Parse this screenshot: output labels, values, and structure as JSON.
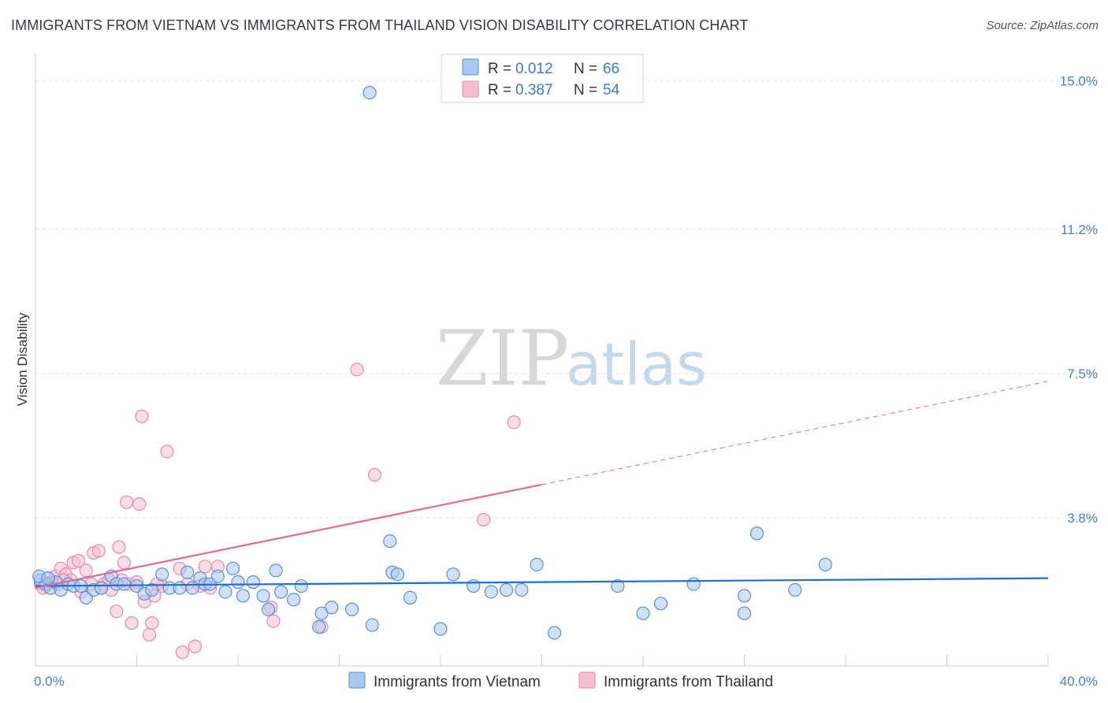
{
  "title": "IMMIGRANTS FROM VIETNAM VS IMMIGRANTS FROM THAILAND VISION DISABILITY CORRELATION CHART",
  "source": "Source: ZipAtlas.com",
  "watermark": {
    "zip": "ZIP",
    "atlas": "atlas"
  },
  "colors": {
    "vietnam_fill": "#a9c8f0",
    "vietnam_stroke": "#5a8fd6",
    "vietnam_line": "#1f6fcc",
    "thailand_fill": "#f6bfd1",
    "thailand_stroke": "#e58aa8",
    "thailand_line": "#e26a94",
    "grid": "#e2e2e2",
    "axis_text": "#4a7fd0"
  },
  "legend": {
    "r_label": "R = ",
    "n_label": "N = ",
    "vietnam": {
      "r": "0.012",
      "n": "66"
    },
    "thailand": {
      "r": "0.387",
      "n": "54"
    }
  },
  "chart_data": {
    "type": "scatter",
    "title": "IMMIGRANTS FROM VIETNAM VS IMMIGRANTS FROM THAILAND VISION DISABILITY CORRELATION CHART",
    "xlabel": "",
    "ylabel": "Vision Disability",
    "xlim": [
      0,
      40
    ],
    "ylim": [
      0,
      15.5
    ],
    "x_tick_labels": [
      "0.0%",
      "40.0%"
    ],
    "y_ticks": [
      3.8,
      7.5,
      11.2,
      15.0
    ],
    "y_tick_labels": [
      "3.8%",
      "7.5%",
      "11.2%",
      "15.0%"
    ],
    "grid": true,
    "legend_position": "top-center",
    "series": [
      {
        "name": "Immigrants from Vietnam",
        "trend": {
          "x": [
            0,
            40
          ],
          "y": [
            2.05,
            2.25
          ],
          "dashed_from_x": null
        },
        "points": [
          [
            0.2,
            2.2
          ],
          [
            0.4,
            2.1
          ],
          [
            0.6,
            2.0
          ],
          [
            0.8,
            2.15
          ],
          [
            1.0,
            1.95
          ],
          [
            1.3,
            2.1
          ],
          [
            1.5,
            2.05
          ],
          [
            2.0,
            1.75
          ],
          [
            2.3,
            1.95
          ],
          [
            2.6,
            2.0
          ],
          [
            3.0,
            2.3
          ],
          [
            3.2,
            2.1
          ],
          [
            3.5,
            2.1
          ],
          [
            4.0,
            2.05
          ],
          [
            4.3,
            1.85
          ],
          [
            4.6,
            1.95
          ],
          [
            5.0,
            2.35
          ],
          [
            5.3,
            2.0
          ],
          [
            5.7,
            2.0
          ],
          [
            6.0,
            2.4
          ],
          [
            6.2,
            2.0
          ],
          [
            6.5,
            2.25
          ],
          [
            6.7,
            2.1
          ],
          [
            6.9,
            2.1
          ],
          [
            7.2,
            2.3
          ],
          [
            7.5,
            1.9
          ],
          [
            7.8,
            2.5
          ],
          [
            8.0,
            2.15
          ],
          [
            8.2,
            1.8
          ],
          [
            8.6,
            2.15
          ],
          [
            9.0,
            1.8
          ],
          [
            9.2,
            1.45
          ],
          [
            9.5,
            2.45
          ],
          [
            9.7,
            1.9
          ],
          [
            10.2,
            1.7
          ],
          [
            10.5,
            2.05
          ],
          [
            11.2,
            1.0
          ],
          [
            11.3,
            1.35
          ],
          [
            11.7,
            1.5
          ],
          [
            12.5,
            1.45
          ],
          [
            13.2,
            14.7
          ],
          [
            13.3,
            1.05
          ],
          [
            14.1,
            2.4
          ],
          [
            14.3,
            2.35
          ],
          [
            14.0,
            3.2
          ],
          [
            14.8,
            1.75
          ],
          [
            16.0,
            0.95
          ],
          [
            16.5,
            2.35
          ],
          [
            17.3,
            2.05
          ],
          [
            18.0,
            1.9
          ],
          [
            18.6,
            1.95
          ],
          [
            19.2,
            1.95
          ],
          [
            19.8,
            2.6
          ],
          [
            20.5,
            0.85
          ],
          [
            23.0,
            2.05
          ],
          [
            24.0,
            1.35
          ],
          [
            24.7,
            1.6
          ],
          [
            26.0,
            2.1
          ],
          [
            28.0,
            1.8
          ],
          [
            28.0,
            1.35
          ],
          [
            28.5,
            3.4
          ],
          [
            30.0,
            1.95
          ],
          [
            31.2,
            2.6
          ],
          [
            0.15,
            2.3
          ],
          [
            0.5,
            2.25
          ],
          [
            1.8,
            2.05
          ]
        ]
      },
      {
        "name": "Immigrants from Thailand",
        "trend": {
          "x": [
            0,
            40
          ],
          "y": [
            2.0,
            7.3
          ],
          "dashed_from_x": 20.0
        },
        "points": [
          [
            0.2,
            2.1
          ],
          [
            0.4,
            2.05
          ],
          [
            0.6,
            2.15
          ],
          [
            0.8,
            2.3
          ],
          [
            1.0,
            2.5
          ],
          [
            1.2,
            2.35
          ],
          [
            1.4,
            2.2
          ],
          [
            1.5,
            2.65
          ],
          [
            1.7,
            2.7
          ],
          [
            1.8,
            1.9
          ],
          [
            2.0,
            2.45
          ],
          [
            2.2,
            2.1
          ],
          [
            2.3,
            2.9
          ],
          [
            2.5,
            2.95
          ],
          [
            2.7,
            2.1
          ],
          [
            2.9,
            2.2
          ],
          [
            3.0,
            1.95
          ],
          [
            3.2,
            1.4
          ],
          [
            3.3,
            3.05
          ],
          [
            3.5,
            2.65
          ],
          [
            3.6,
            4.2
          ],
          [
            3.7,
            2.1
          ],
          [
            3.8,
            1.1
          ],
          [
            4.0,
            2.15
          ],
          [
            4.1,
            4.15
          ],
          [
            4.2,
            6.4
          ],
          [
            4.3,
            1.65
          ],
          [
            4.5,
            0.8
          ],
          [
            4.6,
            1.1
          ],
          [
            4.7,
            1.8
          ],
          [
            5.0,
            2.05
          ],
          [
            5.2,
            5.5
          ],
          [
            5.7,
            2.5
          ],
          [
            5.8,
            0.35
          ],
          [
            6.0,
            2.1
          ],
          [
            6.3,
            0.5
          ],
          [
            6.7,
            2.55
          ],
          [
            6.9,
            2.0
          ],
          [
            7.2,
            2.55
          ],
          [
            9.3,
            1.5
          ],
          [
            9.4,
            1.15
          ],
          [
            11.3,
            1.0
          ],
          [
            12.7,
            7.6
          ],
          [
            13.4,
            4.9
          ],
          [
            17.7,
            3.75
          ],
          [
            18.9,
            6.25
          ],
          [
            0.5,
            2.1
          ],
          [
            0.9,
            2.1
          ],
          [
            1.1,
            2.2
          ],
          [
            2.6,
            2.0
          ],
          [
            3.4,
            2.2
          ],
          [
            4.8,
            2.1
          ],
          [
            6.5,
            2.05
          ],
          [
            0.3,
            2.0
          ]
        ]
      }
    ]
  }
}
